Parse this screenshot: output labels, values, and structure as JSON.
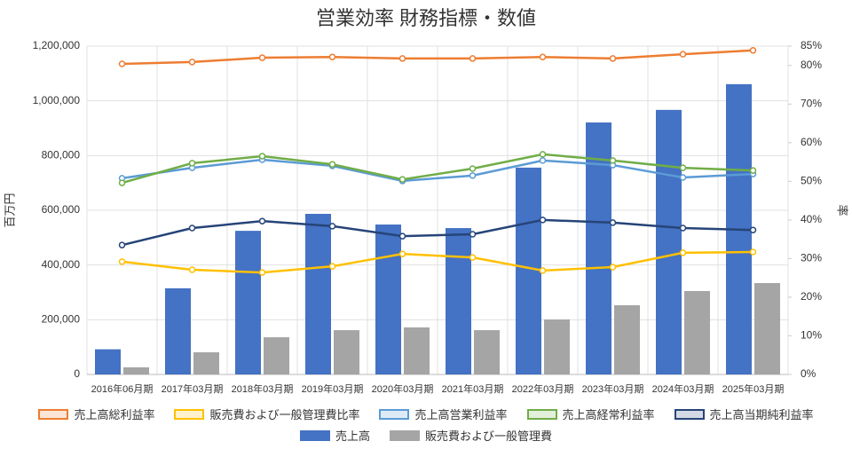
{
  "chart_data": {
    "type": "combo",
    "title": "営業効率 財務指標・数値",
    "y_label": "百万円",
    "y2_label": "率",
    "categories": [
      "2016年06月期",
      "2017年03月期",
      "2018年03月期",
      "2019年03月期",
      "2020年03月期",
      "2021年03月期",
      "2022年03月期",
      "2023年03月期",
      "2024年03月期",
      "2025年03月期"
    ],
    "ylim": [
      0,
      1200000
    ],
    "yticks": [
      0,
      {
        "value": 200000,
        "label": "200,000"
      },
      {
        "value": 400000,
        "label": "400,000"
      },
      {
        "value": 600000,
        "label": "600,000"
      },
      {
        "value": 800000,
        "label": "800,000"
      },
      {
        "value": 1000000,
        "label": "1,000,000"
      },
      {
        "value": 1200000,
        "label": "1,200,000"
      }
    ],
    "y2lim": [
      0,
      85
    ],
    "y2ticks": [
      {
        "value": 0,
        "label": "0%"
      },
      {
        "value": 10,
        "label": "10%"
      },
      {
        "value": 20,
        "label": "20%"
      },
      {
        "value": 30,
        "label": "30%"
      },
      {
        "value": 40,
        "label": "40%"
      },
      {
        "value": 50,
        "label": "50%"
      },
      {
        "value": 60,
        "label": "60%"
      },
      {
        "value": 70,
        "label": "70%"
      },
      {
        "value": 80,
        "label": "80%"
      },
      {
        "value": 85,
        "label": "85%"
      }
    ],
    "grid": true,
    "series": [
      {
        "name": "売上高総利益率",
        "type": "line",
        "axis": "y2",
        "color": "#ed7d31",
        "values": [
          80.4,
          80.9,
          82.0,
          82.2,
          81.8,
          81.8,
          82.2,
          81.8,
          82.9,
          83.9
        ]
      },
      {
        "name": "販売費および一般管理費比率",
        "type": "line",
        "axis": "y2",
        "color": "#ffc000",
        "values": [
          29.2,
          27.1,
          26.4,
          28.0,
          31.2,
          30.3,
          26.9,
          27.8,
          31.5,
          31.7
        ]
      },
      {
        "name": "売上高営業利益率",
        "type": "line",
        "axis": "y2",
        "color": "#5b9bd5",
        "values": [
          50.8,
          53.5,
          55.6,
          54.0,
          50.1,
          51.5,
          55.4,
          54.2,
          51.0,
          51.9
        ]
      },
      {
        "name": "売上高経常利益率",
        "type": "line",
        "axis": "y2",
        "color": "#70ad47",
        "values": [
          49.6,
          54.7,
          56.5,
          54.4,
          50.5,
          53.3,
          57.0,
          55.4,
          53.5,
          52.8
        ]
      },
      {
        "name": "売上高当期純利益率",
        "type": "line",
        "axis": "y2",
        "color": "#264478",
        "values": [
          33.5,
          37.9,
          39.7,
          38.4,
          35.8,
          36.3,
          40.0,
          39.3,
          37.9,
          37.4
        ]
      },
      {
        "name": "売上高",
        "type": "bar",
        "color": "#4472c4",
        "values": [
          92000,
          315000,
          525000,
          587000,
          548000,
          535000,
          756000,
          921000,
          967000,
          1061000
        ]
      },
      {
        "name": "販売費および一般管理費",
        "type": "bar",
        "color": "#a5a5a5",
        "values": [
          26000,
          81000,
          136000,
          162000,
          172000,
          162000,
          201000,
          253000,
          305000,
          334000
        ]
      }
    ]
  }
}
